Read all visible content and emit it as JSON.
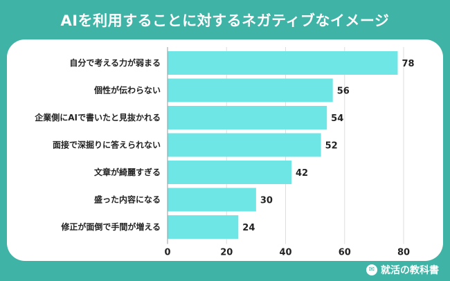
{
  "page": {
    "title": "AIを利用することに対するネガティブなイメージ",
    "brand_name": "就活の教科書",
    "brand_icon": "chat-bubble-icon"
  },
  "chart_data": {
    "type": "bar",
    "orientation": "horizontal",
    "title": "AIを利用することに対するネガティブなイメージ",
    "categories": [
      "自分で考える力が弱まる",
      "個性が伝わらない",
      "企業側にAIで書いたと見抜かれる",
      "面接で深掘りに答えられない",
      "文章が綺麗すぎる",
      "盛った内容になる",
      "修正が面倒で手間が増える"
    ],
    "values": [
      78,
      56,
      54,
      52,
      42,
      30,
      24
    ],
    "xlim": [
      0,
      80
    ],
    "xticks": [
      "0",
      "20",
      "40",
      "60",
      "80"
    ],
    "grid": true,
    "bar_color": "#6ee6e6",
    "xlabel": "",
    "ylabel": ""
  }
}
